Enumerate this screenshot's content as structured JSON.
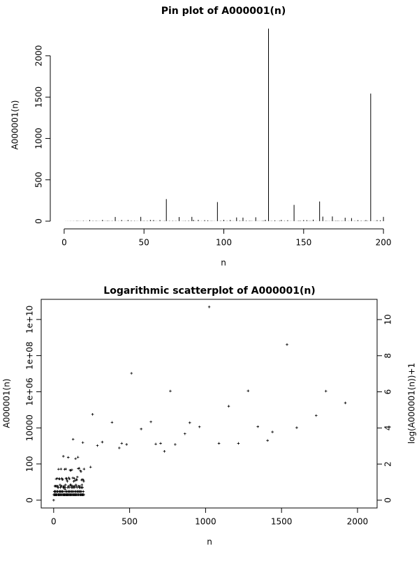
{
  "chart_data": [
    {
      "type": "pin",
      "title": "Pin plot of A000001(n)",
      "x_label": "n",
      "y_label": "A000001(n)",
      "color": "#000000",
      "x": [
        0,
        1,
        2,
        3,
        4,
        5,
        6,
        7,
        8,
        9,
        10,
        11,
        12,
        13,
        14,
        15,
        16,
        17,
        18,
        19,
        20,
        21,
        22,
        23,
        24,
        25,
        26,
        27,
        28,
        29,
        30,
        31,
        32,
        33,
        34,
        35,
        36,
        37,
        38,
        39,
        40,
        41,
        42,
        43,
        44,
        45,
        46,
        47,
        48,
        49,
        50,
        51,
        52,
        53,
        54,
        55,
        56,
        57,
        58,
        59,
        60,
        61,
        62,
        63,
        64,
        65,
        66,
        67,
        68,
        69,
        70,
        71,
        72,
        73,
        74,
        75,
        76,
        77,
        78,
        79,
        80,
        81,
        82,
        83,
        84,
        85,
        86,
        87,
        88,
        89,
        90,
        91,
        92,
        93,
        94,
        95,
        96,
        97,
        98,
        99,
        100,
        101,
        102,
        103,
        104,
        105,
        106,
        107,
        108,
        109,
        110,
        111,
        112,
        113,
        114,
        115,
        116,
        117,
        118,
        119,
        120,
        121,
        122,
        123,
        124,
        125,
        126,
        127,
        128,
        129,
        130,
        131,
        132,
        133,
        134,
        135,
        136,
        137,
        138,
        139,
        140,
        141,
        142,
        143,
        144,
        145,
        146,
        147,
        148,
        149,
        150,
        151,
        152,
        153,
        154,
        155,
        156,
        157,
        158,
        159,
        160,
        161,
        162,
        163,
        164,
        165,
        166,
        167,
        168,
        169,
        170,
        171,
        172,
        173,
        174,
        175,
        176,
        177,
        178,
        179,
        180,
        181,
        182,
        183,
        184,
        185,
        186,
        187,
        188,
        189,
        190,
        191,
        192,
        193,
        194,
        195,
        196,
        197,
        198,
        199,
        200
      ],
      "values": [
        0,
        1,
        1,
        1,
        2,
        1,
        2,
        1,
        5,
        2,
        2,
        1,
        5,
        1,
        2,
        1,
        14,
        1,
        5,
        1,
        5,
        2,
        2,
        1,
        15,
        2,
        2,
        5,
        4,
        1,
        4,
        1,
        51,
        1,
        2,
        1,
        14,
        1,
        2,
        2,
        14,
        1,
        6,
        1,
        4,
        2,
        2,
        1,
        52,
        2,
        5,
        1,
        5,
        1,
        15,
        2,
        13,
        2,
        2,
        1,
        13,
        1,
        2,
        4,
        267,
        1,
        4,
        1,
        5,
        1,
        4,
        1,
        50,
        1,
        2,
        3,
        4,
        1,
        6,
        1,
        52,
        15,
        2,
        1,
        15,
        1,
        2,
        1,
        12,
        1,
        10,
        1,
        4,
        2,
        2,
        1,
        231,
        1,
        5,
        2,
        16,
        1,
        4,
        1,
        14,
        2,
        2,
        1,
        45,
        1,
        6,
        2,
        43,
        1,
        6,
        1,
        5,
        4,
        2,
        1,
        47,
        2,
        2,
        1,
        4,
        5,
        16,
        1,
        2328,
        2,
        4,
        1,
        10,
        1,
        2,
        5,
        15,
        1,
        4,
        1,
        11,
        1,
        2,
        1,
        197,
        1,
        2,
        6,
        5,
        1,
        13,
        1,
        12,
        2,
        4,
        2,
        18,
        1,
        2,
        1,
        238,
        1,
        55,
        1,
        5,
        2,
        2,
        1,
        57,
        2,
        4,
        5,
        4,
        1,
        4,
        2,
        42,
        1,
        2,
        1,
        37,
        1,
        4,
        2,
        12,
        1,
        6,
        1,
        4,
        13,
        4,
        1,
        1543,
        1,
        2,
        2,
        12,
        1,
        10,
        1,
        52
      ],
      "xlim": [
        -8.7,
        208.7
      ],
      "xticks": [
        0,
        50,
        100,
        150,
        200
      ],
      "ylim": [
        -93,
        2421
      ],
      "yticks": [
        0,
        500,
        1000,
        1500,
        2000
      ]
    },
    {
      "type": "scatter",
      "title": "Logarithmic scatterplot of A000001(n)",
      "x_label": "n",
      "y_label": "A000001(n)",
      "y2_label": "log(A000001(n))+1",
      "color": "#000000",
      "y_scale": "log10(1+y)",
      "box": true,
      "x": [
        0,
        1,
        2,
        3,
        4,
        5,
        6,
        7,
        8,
        9,
        10,
        11,
        12,
        13,
        14,
        15,
        16,
        17,
        18,
        19,
        20,
        21,
        22,
        23,
        24,
        25,
        26,
        27,
        28,
        29,
        30,
        31,
        32,
        33,
        34,
        35,
        36,
        37,
        38,
        39,
        40,
        41,
        42,
        43,
        44,
        45,
        46,
        47,
        48,
        49,
        50,
        51,
        52,
        53,
        54,
        55,
        56,
        57,
        58,
        59,
        60,
        61,
        62,
        63,
        64,
        65,
        66,
        67,
        68,
        69,
        70,
        71,
        72,
        73,
        74,
        75,
        76,
        77,
        78,
        79,
        80,
        81,
        82,
        83,
        84,
        85,
        86,
        87,
        88,
        89,
        90,
        91,
        92,
        93,
        94,
        95,
        96,
        97,
        98,
        99,
        100,
        101,
        102,
        103,
        104,
        105,
        106,
        107,
        108,
        109,
        110,
        111,
        112,
        113,
        114,
        115,
        116,
        117,
        118,
        119,
        120,
        121,
        122,
        123,
        124,
        125,
        126,
        127,
        128,
        129,
        130,
        131,
        132,
        133,
        134,
        135,
        136,
        137,
        138,
        139,
        140,
        141,
        142,
        143,
        144,
        145,
        146,
        147,
        148,
        149,
        150,
        151,
        152,
        153,
        154,
        155,
        156,
        157,
        158,
        159,
        160,
        161,
        162,
        163,
        164,
        165,
        166,
        167,
        168,
        169,
        170,
        171,
        172,
        173,
        174,
        175,
        176,
        177,
        178,
        179,
        180,
        181,
        182,
        183,
        184,
        185,
        186,
        187,
        188,
        189,
        190,
        191,
        192,
        193,
        194,
        195,
        196,
        197,
        198,
        199,
        200,
        243,
        256,
        288,
        320,
        384,
        432,
        448,
        480,
        512,
        576,
        640,
        672,
        704,
        729,
        768,
        800,
        864,
        896,
        960,
        1024,
        1088,
        1152,
        1216,
        1280,
        1344,
        1408,
        1440,
        1536,
        1600,
        1728,
        1792,
        1920
      ],
      "values": [
        0,
        1,
        1,
        1,
        2,
        1,
        2,
        1,
        5,
        2,
        2,
        1,
        5,
        1,
        2,
        1,
        14,
        1,
        5,
        1,
        5,
        2,
        2,
        1,
        15,
        2,
        2,
        5,
        4,
        1,
        4,
        1,
        51,
        1,
        2,
        1,
        14,
        1,
        2,
        2,
        14,
        1,
        6,
        1,
        4,
        2,
        2,
        1,
        52,
        2,
        5,
        1,
        5,
        1,
        15,
        2,
        13,
        2,
        2,
        1,
        13,
        1,
        2,
        4,
        267,
        1,
        4,
        1,
        5,
        1,
        4,
        1,
        50,
        1,
        2,
        3,
        4,
        1,
        6,
        1,
        52,
        15,
        2,
        1,
        15,
        1,
        2,
        1,
        12,
        1,
        10,
        1,
        4,
        2,
        2,
        1,
        231,
        1,
        5,
        2,
        16,
        1,
        4,
        1,
        14,
        2,
        2,
        1,
        45,
        1,
        6,
        2,
        43,
        1,
        6,
        1,
        5,
        4,
        2,
        1,
        47,
        2,
        2,
        1,
        4,
        5,
        16,
        1,
        2328,
        2,
        4,
        1,
        10,
        1,
        2,
        5,
        15,
        1,
        4,
        1,
        11,
        1,
        2,
        1,
        197,
        1,
        2,
        6,
        5,
        1,
        13,
        1,
        12,
        2,
        4,
        2,
        18,
        1,
        2,
        1,
        238,
        1,
        55,
        1,
        5,
        2,
        2,
        1,
        57,
        2,
        4,
        5,
        4,
        1,
        4,
        2,
        42,
        1,
        2,
        1,
        37,
        1,
        4,
        2,
        12,
        1,
        6,
        1,
        4,
        13,
        4,
        1,
        1543,
        1,
        2,
        2,
        12,
        1,
        10,
        1,
        52,
        67,
        56092,
        1045,
        1640,
        20169,
        775,
        1396,
        1213,
        10494213,
        8681,
        21541,
        1280,
        1387,
        504,
        1090235,
        1211,
        4725,
        19349,
        11394,
        49487365422,
        1390,
        157877,
        1388,
        1116461,
        11720,
        2000,
        5958,
        408641062,
        10281,
        47937,
        1083553,
        241004
      ],
      "xlim": [
        -82,
        2129
      ],
      "xticks": [
        0,
        500,
        1000,
        1500,
        2000
      ],
      "ylim": [
        -0.63,
        130000000000
      ],
      "yticks": [
        0,
        100,
        10000,
        {
          "value": 1000000,
          "label": "1e+06"
        },
        {
          "value": 100000000,
          "label": "1e+08"
        },
        {
          "value": 10000000000,
          "label": "1e+10"
        }
      ],
      "y2lim": [
        -0.43,
        11.12
      ],
      "y2ticks": [
        0,
        2,
        4,
        6,
        8,
        10
      ]
    }
  ]
}
